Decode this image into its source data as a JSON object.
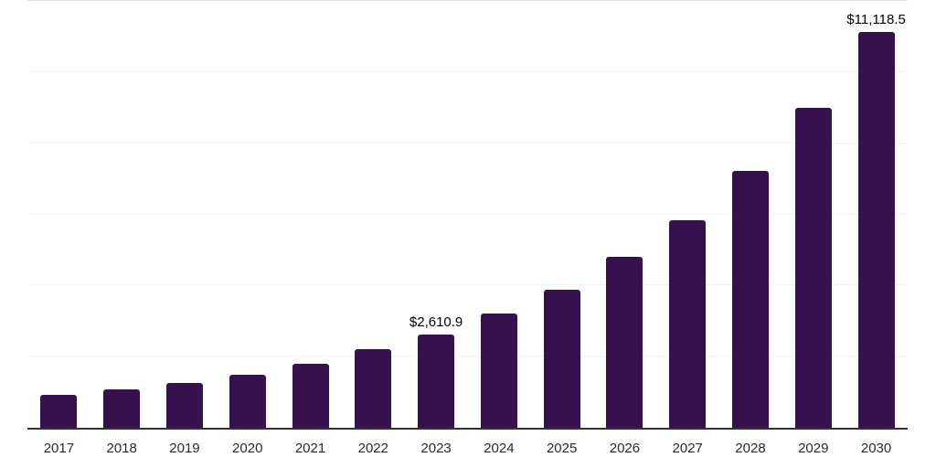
{
  "chart_data": {
    "type": "bar",
    "title": "",
    "xlabel": "",
    "ylabel": "",
    "categories": [
      "2017",
      "2018",
      "2019",
      "2020",
      "2021",
      "2022",
      "2023",
      "2024",
      "2025",
      "2026",
      "2027",
      "2028",
      "2029",
      "2030"
    ],
    "values": [
      925,
      1070,
      1260,
      1480,
      1790,
      2200,
      2610.9,
      3210,
      3890,
      4805,
      5840,
      7215,
      9005,
      11118.5
    ],
    "data_labels": [
      "",
      "",
      "",
      "",
      "",
      "",
      "$2,610.9",
      "",
      "",
      "",
      "",
      "",
      "",
      "$11,118.5"
    ],
    "labeled_points": [
      {
        "category": "2023",
        "label": "$2,610.9",
        "value": 2610.9
      },
      {
        "category": "2030",
        "label": "$11,118.5",
        "value": 11118.5
      }
    ],
    "ylim": [
      0,
      12000
    ],
    "gridline_values": [
      2000,
      4000,
      6000,
      8000,
      10000,
      12000
    ],
    "grid": "horizontal-only",
    "legend": "none",
    "y_tick_labels_visible": false,
    "colors": {
      "bar": "#36114E",
      "background": "#ffffff",
      "gridline": "#f2f2f2",
      "gridline_top": "#e4e4e4",
      "axis_line": "#333333",
      "data_label_text": "#000000",
      "x_tick_text": "#2b2b2b"
    }
  }
}
